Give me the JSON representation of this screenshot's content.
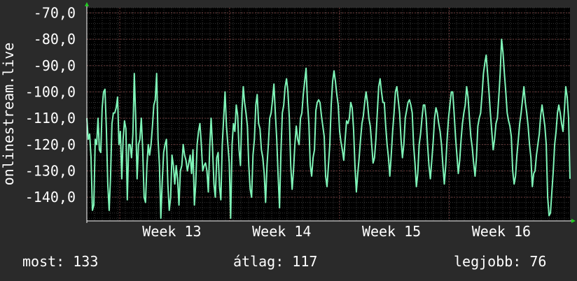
{
  "chart_data": {
    "type": "line",
    "ylabel": "onlinestream.live",
    "ylim": [
      -149,
      -68
    ],
    "yticks": [
      -70,
      -80,
      -90,
      -100,
      -110,
      -120,
      -130,
      -140
    ],
    "ytick_labels": [
      "-70,0",
      "-80,0",
      "-90,0",
      "-100,0",
      "-110,0",
      "-120,0",
      "-130,0",
      "-140,0"
    ],
    "xlabels": [
      "Week 13",
      "Week 14",
      "Week 15",
      "Week 16"
    ],
    "line_color": "#7ff5b8",
    "grid": true,
    "series": [
      {
        "values": [
          -110,
          -118,
          -116,
          -125,
          -145,
          -143,
          -118,
          -120,
          -110,
          -122,
          -123,
          -106,
          -100,
          -99,
          -114,
          -135,
          -145,
          -132,
          -112,
          -108,
          -108,
          -106,
          -102,
          -120,
          -115,
          -133,
          -118,
          -111,
          -114,
          -141,
          -120,
          -120,
          -125,
          -116,
          -93,
          -110,
          -133,
          -120,
          -118,
          -110,
          -122,
          -140,
          -142,
          -128,
          -120,
          -124,
          -120,
          -113,
          -105,
          -103,
          -93,
          -118,
          -128,
          -148,
          -134,
          -123,
          -120,
          -118,
          -135,
          -145,
          -140,
          -124,
          -128,
          -135,
          -128,
          -133,
          -143,
          -130,
          -128,
          -120,
          -124,
          -126,
          -130,
          -127,
          -124,
          -131,
          -122,
          -143,
          -135,
          -120,
          -115,
          -112,
          -120,
          -130,
          -128,
          -127,
          -130,
          -138,
          -121,
          -110,
          -121,
          -135,
          -140,
          -125,
          -123,
          -136,
          -141,
          -120,
          -110,
          -100,
          -113,
          -120,
          -127,
          -148,
          -120,
          -112,
          -115,
          -105,
          -109,
          -122,
          -128,
          -108,
          -98,
          -104,
          -108,
          -113,
          -128,
          -137,
          -140,
          -124,
          -118,
          -105,
          -101,
          -112,
          -114,
          -122,
          -125,
          -131,
          -142,
          -128,
          -120,
          -110,
          -108,
          -103,
          -97,
          -108,
          -118,
          -132,
          -144,
          -123,
          -108,
          -105,
          -98,
          -95,
          -100,
          -110,
          -128,
          -137,
          -130,
          -120,
          -113,
          -118,
          -120,
          -110,
          -108,
          -101,
          -96,
          -91,
          -104,
          -112,
          -128,
          -132,
          -125,
          -122,
          -107,
          -104,
          -103,
          -104,
          -109,
          -113,
          -117,
          -132,
          -136,
          -128,
          -120,
          -105,
          -96,
          -92,
          -96,
          -101,
          -105,
          -115,
          -119,
          -122,
          -126,
          -118,
          -111,
          -112,
          -110,
          -104,
          -106,
          -114,
          -128,
          -138,
          -131,
          -125,
          -118,
          -112,
          -109,
          -104,
          -100,
          -104,
          -110,
          -113,
          -120,
          -127,
          -125,
          -118,
          -108,
          -98,
          -95,
          -100,
          -104,
          -104,
          -113,
          -120,
          -125,
          -132,
          -124,
          -115,
          -108,
          -100,
          -98,
          -103,
          -108,
          -118,
          -125,
          -120,
          -110,
          -107,
          -104,
          -103,
          -105,
          -108,
          -120,
          -127,
          -136,
          -131,
          -120,
          -116,
          -110,
          -105,
          -105,
          -110,
          -120,
          -128,
          -133,
          -126,
          -119,
          -110,
          -106,
          -108,
          -112,
          -115,
          -120,
          -128,
          -135,
          -128,
          -118,
          -110,
          -105,
          -100,
          -100,
          -108,
          -117,
          -124,
          -131,
          -126,
          -118,
          -112,
          -108,
          -105,
          -98,
          -102,
          -110,
          -117,
          -121,
          -127,
          -132,
          -125,
          -113,
          -110,
          -108,
          -101,
          -93,
          -89,
          -86,
          -93,
          -100,
          -108,
          -115,
          -122,
          -118,
          -112,
          -110,
          -102,
          -93,
          -80,
          -85,
          -93,
          -100,
          -108,
          -111,
          -113,
          -117,
          -130,
          -135,
          -132,
          -124,
          -118,
          -112,
          -108,
          -103,
          -98,
          -104,
          -108,
          -113,
          -120,
          -125,
          -136,
          -131,
          -130,
          -124,
          -120,
          -116,
          -109,
          -105,
          -109,
          -113,
          -120,
          -140,
          -147,
          -146,
          -138,
          -130,
          -120,
          -115,
          -108,
          -105,
          -108,
          -112,
          -115,
          -107,
          -98,
          -102,
          -110,
          -133
        ]
      }
    ]
  },
  "stats": {
    "now": "most: 133",
    "average": "átlag: 117",
    "best": "legjobb: 76"
  }
}
